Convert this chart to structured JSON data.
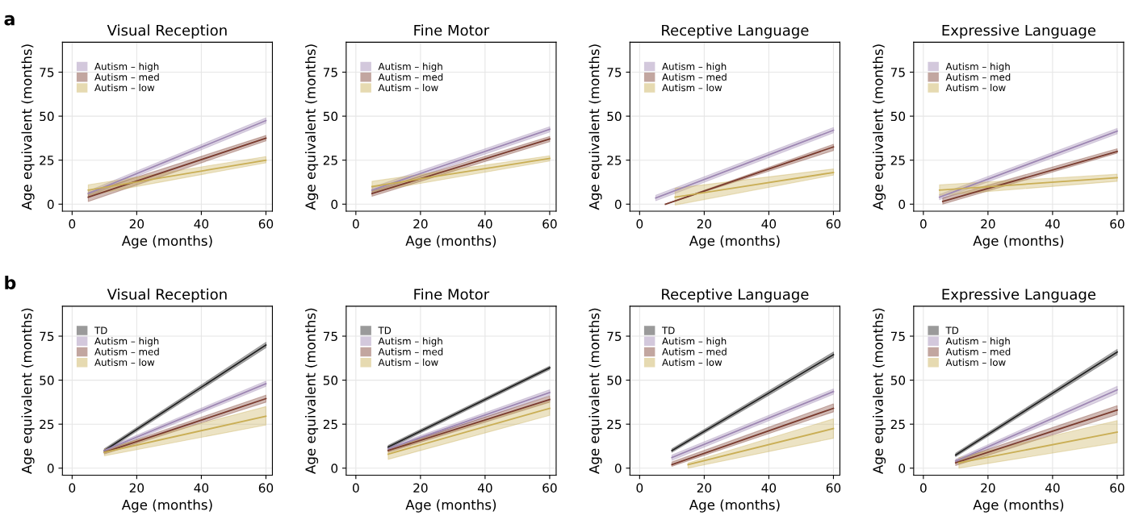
{
  "chart_data": [
    {
      "type": "line",
      "title": "Visual Reception",
      "xlabel": "Age (months)",
      "ylabel": "Age equivalent (months)",
      "annotations": [
        "a"
      ],
      "xlim": [
        -3,
        62
      ],
      "ylim": [
        -4,
        92
      ],
      "xticks": [
        0,
        20,
        40,
        60
      ],
      "yticks": [
        0,
        25,
        50,
        75
      ],
      "grid": true,
      "legend": "top left",
      "series": [
        {
          "name": "Autism – high",
          "color": "#9e87b3",
          "x": [
            5,
            60
          ],
          "values": [
            6,
            47.5
          ],
          "lower": [
            4.5,
            46
          ],
          "upper": [
            7.5,
            49
          ]
        },
        {
          "name": "Autism – med",
          "color": "#7a3b2e",
          "x": [
            5,
            60
          ],
          "values": [
            4,
            37.5
          ],
          "lower": [
            1.5,
            36
          ],
          "upper": [
            6.5,
            39
          ]
        },
        {
          "name": "Autism – low",
          "color": "#c9ae55",
          "x": [
            5,
            60
          ],
          "values": [
            8,
            25
          ],
          "lower": [
            5,
            23.5
          ],
          "upper": [
            11,
            27
          ]
        }
      ]
    },
    {
      "type": "line",
      "title": "Fine Motor",
      "xlabel": "Age (months)",
      "ylabel": "Age equivalent (months)",
      "xlim": [
        -3,
        62
      ],
      "ylim": [
        -4,
        92
      ],
      "xticks": [
        0,
        20,
        40,
        60
      ],
      "yticks": [
        0,
        25,
        50,
        75
      ],
      "grid": true,
      "legend": "top left",
      "series": [
        {
          "name": "Autism – high",
          "color": "#9e87b3",
          "x": [
            5,
            60
          ],
          "values": [
            8,
            42.5
          ],
          "lower": [
            6.5,
            41
          ],
          "upper": [
            9.5,
            44
          ]
        },
        {
          "name": "Autism – med",
          "color": "#7a3b2e",
          "x": [
            5,
            60
          ],
          "values": [
            6,
            37
          ],
          "lower": [
            4.5,
            35.5
          ],
          "upper": [
            7.5,
            38.5
          ]
        },
        {
          "name": "Autism – low",
          "color": "#c9ae55",
          "x": [
            5,
            60
          ],
          "values": [
            10,
            26
          ],
          "lower": [
            7,
            24.5
          ],
          "upper": [
            13,
            27.5
          ]
        }
      ]
    },
    {
      "type": "line",
      "title": "Receptive Language",
      "xlabel": "Age (months)",
      "ylabel": "Age equivalent (months)",
      "xlim": [
        -3,
        62
      ],
      "ylim": [
        -4,
        92
      ],
      "xticks": [
        0,
        20,
        40,
        60
      ],
      "yticks": [
        0,
        25,
        50,
        75
      ],
      "grid": true,
      "legend": "top left",
      "series": [
        {
          "name": "Autism – high",
          "color": "#9e87b3",
          "x": [
            5,
            60
          ],
          "values": [
            3.5,
            42
          ],
          "lower": [
            2,
            40.5
          ],
          "upper": [
            5,
            43.5
          ]
        },
        {
          "name": "Autism – med",
          "color": "#7a3b2e",
          "x": [
            8,
            60
          ],
          "values": [
            0,
            32.5
          ],
          "lower": [
            0,
            30.5
          ],
          "upper": [
            0,
            34
          ]
        },
        {
          "name": "Autism – low",
          "color": "#c9ae55",
          "x": [
            11,
            60
          ],
          "values": [
            4,
            18
          ],
          "lower": [
            -0.5,
            16.5
          ],
          "upper": [
            9,
            20
          ]
        }
      ]
    },
    {
      "type": "line",
      "title": "Expressive Language",
      "xlabel": "Age (months)",
      "ylabel": "Age equivalent (months)",
      "xlim": [
        -3,
        62
      ],
      "ylim": [
        -4,
        92
      ],
      "xticks": [
        0,
        20,
        40,
        60
      ],
      "yticks": [
        0,
        25,
        50,
        75
      ],
      "grid": true,
      "legend": "top left",
      "series": [
        {
          "name": "Autism – high",
          "color": "#9e87b3",
          "x": [
            5,
            60
          ],
          "values": [
            4,
            41.5
          ],
          "lower": [
            2.5,
            40
          ],
          "upper": [
            5.5,
            43
          ]
        },
        {
          "name": "Autism – med",
          "color": "#7a3b2e",
          "x": [
            6,
            60
          ],
          "values": [
            1.5,
            30
          ],
          "lower": [
            0,
            29
          ],
          "upper": [
            3.5,
            31.5
          ]
        },
        {
          "name": "Autism – low",
          "color": "#c9ae55",
          "x": [
            5,
            60
          ],
          "values": [
            8,
            15
          ],
          "lower": [
            5,
            13
          ],
          "upper": [
            11,
            17
          ]
        }
      ]
    },
    {
      "type": "line",
      "title": "Visual Reception",
      "xlabel": "Age (months)",
      "ylabel": "Age equivalent (months)",
      "annotations": [
        "b"
      ],
      "xlim": [
        -3,
        62
      ],
      "ylim": [
        -4,
        92
      ],
      "xticks": [
        0,
        20,
        40,
        60
      ],
      "yticks": [
        0,
        25,
        50,
        75
      ],
      "grid": true,
      "legend": "top left",
      "series": [
        {
          "name": "TD",
          "color": "#222222",
          "x": [
            10,
            60
          ],
          "values": [
            10,
            70
          ],
          "lower": [
            9,
            68.5
          ],
          "upper": [
            11,
            71.5
          ]
        },
        {
          "name": "Autism – high",
          "color": "#9e87b3",
          "x": [
            10,
            60
          ],
          "values": [
            10,
            48
          ],
          "lower": [
            9,
            46.5
          ],
          "upper": [
            11,
            49.5
          ]
        },
        {
          "name": "Autism – med",
          "color": "#7a3b2e",
          "x": [
            10,
            60
          ],
          "values": [
            9,
            39.5
          ],
          "lower": [
            8,
            37.5
          ],
          "upper": [
            10,
            41.5
          ]
        },
        {
          "name": "Autism – low",
          "color": "#c9ae55",
          "x": [
            10,
            60
          ],
          "values": [
            9,
            29.5
          ],
          "lower": [
            7,
            24.5
          ],
          "upper": [
            11,
            35
          ]
        }
      ]
    },
    {
      "type": "line",
      "title": "Fine Motor",
      "xlabel": "Age (months)",
      "ylabel": "Age equivalent (months)",
      "xlim": [
        -3,
        62
      ],
      "ylim": [
        -4,
        92
      ],
      "xticks": [
        0,
        20,
        40,
        60
      ],
      "yticks": [
        0,
        25,
        50,
        75
      ],
      "grid": true,
      "legend": "top left",
      "series": [
        {
          "name": "TD",
          "color": "#222222",
          "x": [
            10,
            60
          ],
          "values": [
            12,
            57
          ],
          "lower": [
            11,
            56
          ],
          "upper": [
            13,
            58
          ]
        },
        {
          "name": "Autism – high",
          "color": "#9e87b3",
          "x": [
            10,
            60
          ],
          "values": [
            11,
            43
          ],
          "lower": [
            10,
            41.5
          ],
          "upper": [
            12,
            44.5
          ]
        },
        {
          "name": "Autism – med",
          "color": "#7a3b2e",
          "x": [
            10,
            60
          ],
          "values": [
            10,
            39
          ],
          "lower": [
            9,
            37.5
          ],
          "upper": [
            11,
            41
          ]
        },
        {
          "name": "Autism – low",
          "color": "#c9ae55",
          "x": [
            10,
            60
          ],
          "values": [
            8,
            34
          ],
          "lower": [
            5,
            30
          ],
          "upper": [
            11,
            38
          ]
        }
      ]
    },
    {
      "type": "line",
      "title": "Receptive Language",
      "xlabel": "Age (months)",
      "ylabel": "Age equivalent (months)",
      "xlim": [
        -3,
        62
      ],
      "ylim": [
        -4,
        92
      ],
      "xticks": [
        0,
        20,
        40,
        60
      ],
      "yticks": [
        0,
        25,
        50,
        75
      ],
      "grid": true,
      "legend": "top left",
      "series": [
        {
          "name": "TD",
          "color": "#222222",
          "x": [
            10,
            60
          ],
          "values": [
            10,
            64.5
          ],
          "lower": [
            9,
            63
          ],
          "upper": [
            11,
            66
          ]
        },
        {
          "name": "Autism – high",
          "color": "#9e87b3",
          "x": [
            10,
            60
          ],
          "values": [
            6,
            43.5
          ],
          "lower": [
            4.5,
            42
          ],
          "upper": [
            7.5,
            45
          ]
        },
        {
          "name": "Autism – med",
          "color": "#7a3b2e",
          "x": [
            10,
            60
          ],
          "values": [
            2,
            34
          ],
          "lower": [
            1,
            32
          ],
          "upper": [
            3.5,
            36.5
          ]
        },
        {
          "name": "Autism – low",
          "color": "#c9ae55",
          "x": [
            15,
            60
          ],
          "values": [
            2,
            22.5
          ],
          "lower": [
            0,
            17
          ],
          "upper": [
            3,
            28
          ]
        }
      ]
    },
    {
      "type": "line",
      "title": "Expressive Language",
      "xlabel": "Age (months)",
      "ylabel": "Age equivalent (months)",
      "xlim": [
        -3,
        62
      ],
      "ylim": [
        -4,
        92
      ],
      "xticks": [
        0,
        20,
        40,
        60
      ],
      "yticks": [
        0,
        25,
        50,
        75
      ],
      "grid": true,
      "legend": "top left",
      "series": [
        {
          "name": "TD",
          "color": "#222222",
          "x": [
            10,
            60
          ],
          "values": [
            7.5,
            66
          ],
          "lower": [
            6.5,
            64.5
          ],
          "upper": [
            8.5,
            67.5
          ]
        },
        {
          "name": "Autism – high",
          "color": "#9e87b3",
          "x": [
            10,
            60
          ],
          "values": [
            4,
            44.5
          ],
          "lower": [
            3,
            42.5
          ],
          "upper": [
            5,
            46.5
          ]
        },
        {
          "name": "Autism – med",
          "color": "#7a3b2e",
          "x": [
            10,
            60
          ],
          "values": [
            3,
            33
          ],
          "lower": [
            1.5,
            30.5
          ],
          "upper": [
            4.5,
            35.5
          ]
        },
        {
          "name": "Autism – low",
          "color": "#c9ae55",
          "x": [
            11,
            60
          ],
          "values": [
            3,
            20.5
          ],
          "lower": [
            0,
            14.5
          ],
          "upper": [
            6,
            27
          ]
        }
      ]
    }
  ]
}
